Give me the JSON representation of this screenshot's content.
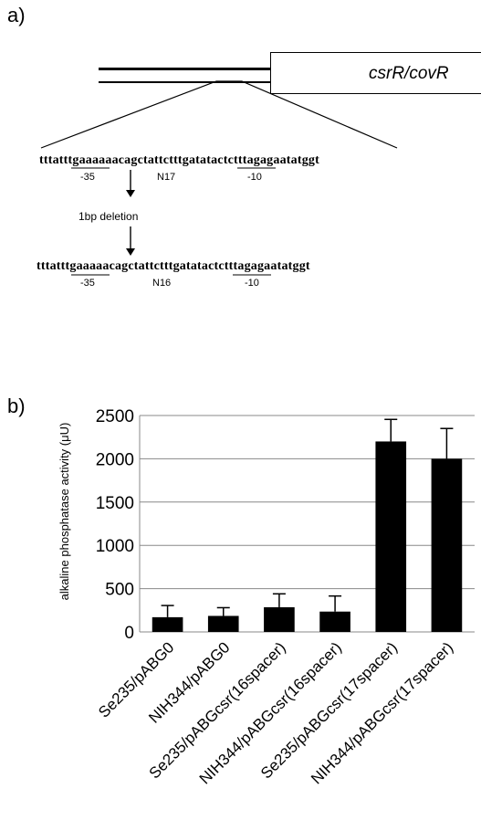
{
  "panel_a": {
    "label": "a)",
    "gene_label": "csrR/covR",
    "seq_original": "tttatttgaaaaaacagctattctttgatatactctttagagaatatggt",
    "seq_deleted": "tttatttgaaaaacagctattctttgatatactctttagagaatatggt",
    "mark_35_top": "-35",
    "mark_n17": "N17",
    "mark_10_top": "-10",
    "deletion_note": "1bp deletion",
    "mark_35_bottom": "-35",
    "mark_n16": "N16",
    "mark_10_bottom": "-10"
  },
  "panel_b": {
    "label": "b)"
  },
  "chart_data": {
    "type": "bar",
    "categories": [
      "Se235/pABG0",
      "NIH344/pABG0",
      "Se235/pABGcsr(16spacer)",
      "NIH344/pABGcsr(16spacer)",
      "Se235/pABGcsr(17spacer)",
      "NIH344/pABGcsr(17spacer)"
    ],
    "values": [
      170,
      185,
      285,
      235,
      2200,
      2000
    ],
    "error_bars": [
      135,
      95,
      155,
      180,
      255,
      350
    ],
    "ylabel": "alkaline phosphatase activity (μU)",
    "xlabel": "",
    "ylim": [
      0,
      2500
    ],
    "yticks": [
      0,
      500,
      1000,
      1500,
      2000,
      2500
    ],
    "ytick_labels": [
      "0",
      "500",
      "1000",
      "1500",
      "2000",
      "2500"
    ],
    "grid": true,
    "bar_color": "#000000",
    "gridline_color": "#888888"
  }
}
